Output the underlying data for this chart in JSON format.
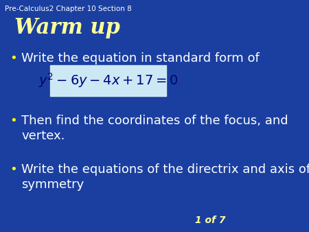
{
  "background_color": "#1a3fa0",
  "header_text": "Pre-Calculus2 Chapter 10 Section 8",
  "header_color": "#ffffff",
  "header_fontsize": 7.5,
  "title_text": "Warm up",
  "title_color": "#ffff99",
  "title_fontsize": 22,
  "bullet_color": "#ffffff",
  "bullet_dot_color": "#ffff00",
  "bullet1_text": "Write the equation in standard form of",
  "bullet1_fontsize": 13,
  "equation": "$y^2 - 6y - 4x + 17 = 0$",
  "equation_box_color": "#cce8f4",
  "equation_fontsize": 13,
  "bullet2_line1": "Then find the coordinates of the focus, and",
  "bullet2_line2": "vertex.",
  "bullet2_fontsize": 13,
  "bullet3_line1": "Write the equations of the directrix and axis of",
  "bullet3_line2": "symmetry",
  "bullet3_fontsize": 13,
  "footer_text": "1 of 7",
  "footer_color": "#ffff99",
  "footer_fontsize": 10
}
